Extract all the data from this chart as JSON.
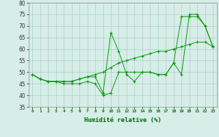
{
  "xlabel": "Humidité relative (%)",
  "xlim": [
    -0.5,
    23.5
  ],
  "ylim": [
    35,
    80
  ],
  "yticks": [
    35,
    40,
    45,
    50,
    55,
    60,
    65,
    70,
    75,
    80
  ],
  "xticks": [
    0,
    1,
    2,
    3,
    4,
    5,
    6,
    7,
    8,
    9,
    10,
    11,
    12,
    13,
    14,
    15,
    16,
    17,
    18,
    19,
    20,
    21,
    22,
    23
  ],
  "background_color": "#d6ede8",
  "grid_color": "#a8cfc4",
  "line_color": "#009900",
  "series": [
    {
      "x": [
        0,
        1,
        2,
        3,
        4,
        5,
        6,
        7,
        8,
        9,
        10,
        11,
        12,
        13,
        14,
        15,
        16,
        17,
        18,
        19,
        20,
        21,
        22,
        23
      ],
      "y": [
        49,
        47,
        46,
        46,
        46,
        46,
        47,
        48,
        48,
        41,
        67,
        59,
        49,
        46,
        50,
        50,
        49,
        49,
        54,
        49,
        75,
        75,
        70,
        61
      ]
    },
    {
      "x": [
        0,
        1,
        2,
        3,
        4,
        5,
        6,
        7,
        8,
        9,
        10,
        11,
        12,
        13,
        14,
        15,
        16,
        17,
        18,
        19,
        20,
        21,
        22,
        23
      ],
      "y": [
        49,
        47,
        46,
        46,
        46,
        46,
        47,
        48,
        49,
        50,
        52,
        54,
        55,
        56,
        57,
        58,
        59,
        59,
        60,
        61,
        62,
        63,
        63,
        61
      ]
    },
    {
      "x": [
        0,
        1,
        2,
        3,
        4,
        5,
        6,
        7,
        8,
        9,
        10,
        11,
        12,
        13,
        14,
        15,
        16,
        17,
        18,
        19,
        20,
        21,
        22,
        23
      ],
      "y": [
        49,
        47,
        46,
        46,
        45,
        45,
        45,
        46,
        45,
        40,
        41,
        50,
        50,
        50,
        50,
        50,
        49,
        49,
        54,
        74,
        74,
        74,
        70,
        61
      ]
    }
  ]
}
